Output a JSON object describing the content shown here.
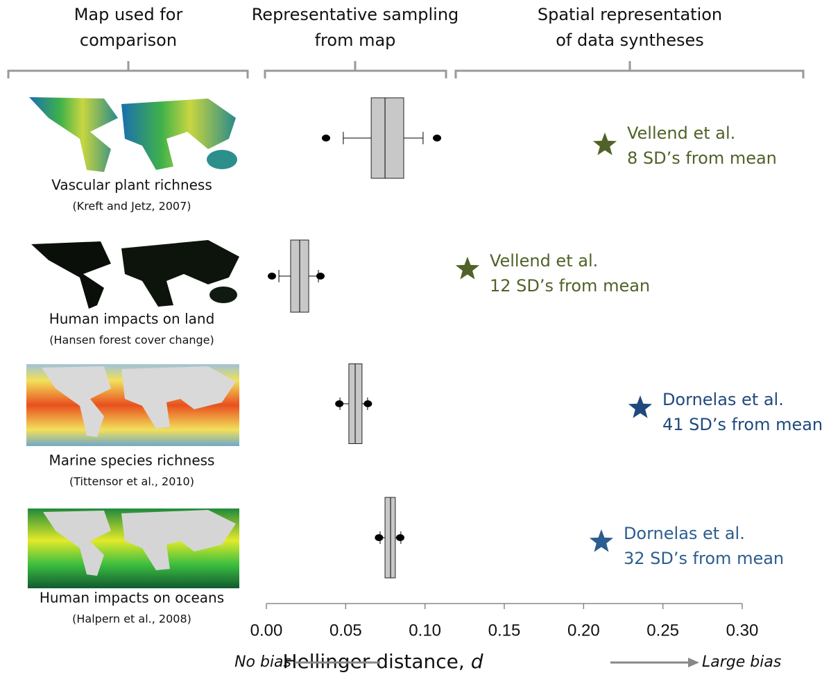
{
  "chart_data": {
    "type": "boxplot",
    "column_headers": [
      [
        "Map used for",
        "comparison"
      ],
      [
        "Representative sampling",
        "from map"
      ],
      [
        "Spatial representation",
        "of data syntheses"
      ]
    ],
    "xlabel": "Hellinger distance, ",
    "xlabel_var": "d",
    "left_annotation": "No bias",
    "right_annotation": "Large bias",
    "xlim": [
      0,
      0.3
    ],
    "xticks": [
      {
        "value": 0,
        "label": "0.00"
      },
      {
        "value": 0.05,
        "label": "0.05"
      },
      {
        "value": 0.1,
        "label": "0.10"
      },
      {
        "value": 0.15,
        "label": "0.15"
      },
      {
        "value": 0.2,
        "label": "0.20"
      },
      {
        "value": 0.25,
        "label": "0.25"
      },
      {
        "value": 0.3,
        "label": "0.30"
      }
    ],
    "rows": [
      {
        "map_title": "Vascular plant richness",
        "map_source": "(Kreft and Jetz, 2007)",
        "whisker_low": 0.0485,
        "q1": 0.0661,
        "median": 0.0748,
        "q3": 0.0866,
        "whisker_high": 0.0988,
        "outliers": [
          0.0376,
          0.1076
        ],
        "star": {
          "x": 0.2134,
          "color": "#4f6228",
          "lines": [
            "Vellend et al.",
            "8 SD’s from mean"
          ]
        }
      },
      {
        "map_title": "Human impacts on land",
        "map_source": "(Hansen forest cover change)",
        "whisker_low": 0.0079,
        "q1": 0.0153,
        "median": 0.021,
        "q3": 0.0267,
        "whisker_high": 0.0328,
        "outliers": [
          0.0035,
          0.0341
        ],
        "star": {
          "x": 0.1268,
          "color": "#4f6228",
          "lines": [
            "Vellend et al.",
            "12 SD’s from mean"
          ]
        }
      },
      {
        "map_title": "Marine species richness",
        "map_source": "(Tittensor et al., 2010)",
        "whisker_low": 0.0464,
        "q1": 0.052,
        "median": 0.056,
        "q3": 0.0603,
        "whisker_high": 0.0638,
        "outliers": [
          0.046,
          0.064
        ],
        "star": {
          "x": 0.2357,
          "color": "#1f497d",
          "lines": [
            "Dornelas et al.",
            "41 SD’s from mean"
          ]
        }
      },
      {
        "map_title": "Human impacts on oceans",
        "map_source": "(Halpern et al., 2008)",
        "whisker_low": 0.0717,
        "q1": 0.0748,
        "median": 0.0783,
        "q3": 0.0813,
        "whisker_high": 0.0848,
        "outliers": [
          0.071,
          0.0844
        ],
        "star": {
          "x": 0.2112,
          "color": "#2c5d8f",
          "lines": [
            "Dornelas et al.",
            "32 SD’s from mean"
          ]
        }
      }
    ]
  }
}
